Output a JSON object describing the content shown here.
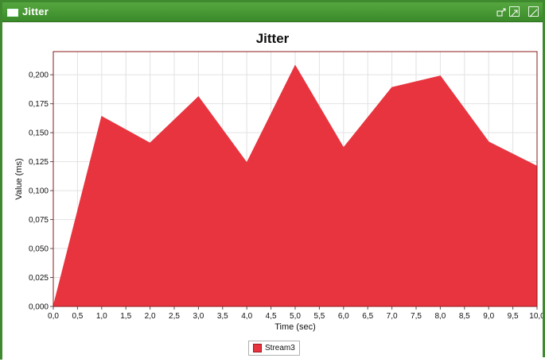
{
  "window": {
    "title": "Jitter"
  },
  "chart_data": {
    "type": "area",
    "title": "Jitter",
    "xlabel": "Time (sec)",
    "ylabel": "Value (ms)",
    "xlim": [
      0,
      10
    ],
    "ylim": [
      0,
      0.22
    ],
    "x_ticks": [
      "0,0",
      "0,5",
      "1,0",
      "1,5",
      "2,0",
      "2,5",
      "3,0",
      "3,5",
      "4,0",
      "4,5",
      "5,0",
      "5,5",
      "6,0",
      "6,5",
      "7,0",
      "7,5",
      "8,0",
      "8,5",
      "9,0",
      "9,5",
      "10,0"
    ],
    "y_ticks": [
      "0,000",
      "0,025",
      "0,050",
      "0,075",
      "0,100",
      "0,125",
      "0,150",
      "0,175",
      "0,200"
    ],
    "grid": true,
    "legend_position": "bottom",
    "series": [
      {
        "name": "Stream3",
        "color": "#e8343e",
        "x": [
          0,
          1,
          2,
          3,
          4,
          5,
          6,
          7,
          8,
          9,
          10
        ],
        "y": [
          0,
          0.164,
          0.141,
          0.181,
          0.124,
          0.208,
          0.137,
          0.189,
          0.199,
          0.142,
          0.121
        ]
      }
    ]
  }
}
